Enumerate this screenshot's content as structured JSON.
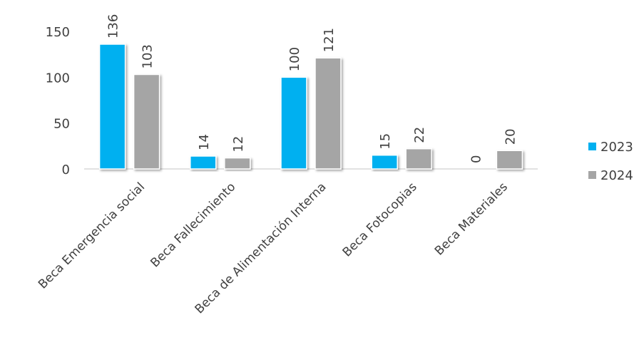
{
  "chart_data": {
    "type": "bar",
    "title": "",
    "xlabel": "",
    "ylabel": "",
    "categories": [
      "Beca Emergencia social",
      "Beca Fallecimiento",
      "Beca de Alimentación Interna",
      "Beca Fotocopias",
      "Beca Materiales"
    ],
    "series": [
      {
        "name": "2023",
        "values": [
          136,
          14,
          100,
          15,
          0
        ],
        "color": "#00B0F0"
      },
      {
        "name": "2024",
        "values": [
          103,
          12,
          121,
          22,
          20
        ],
        "color": "#A5A5A5"
      }
    ],
    "yticks": [
      0,
      50,
      100,
      150
    ],
    "ylim": [
      0,
      150
    ],
    "grid": false,
    "legend": "right",
    "data_labels": true
  }
}
